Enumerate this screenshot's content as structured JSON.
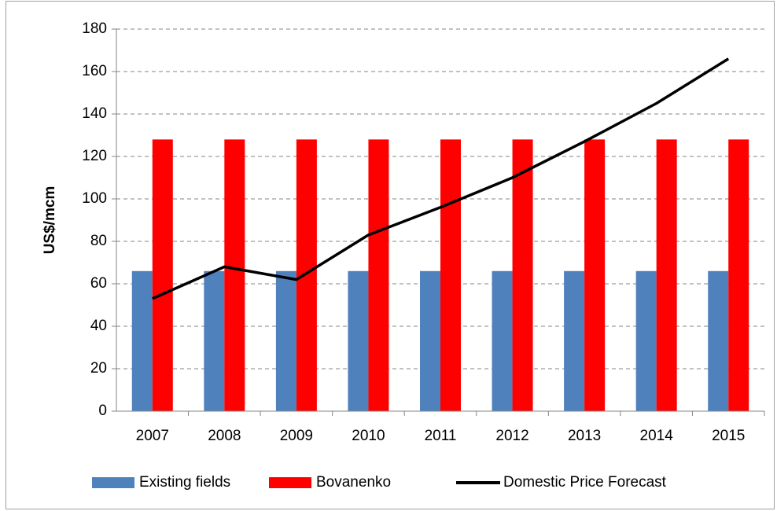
{
  "chart_data": {
    "type": "bar",
    "ylabel": "US$/mcm",
    "categories": [
      "2007",
      "2008",
      "2009",
      "2010",
      "2011",
      "2012",
      "2013",
      "2014",
      "2015"
    ],
    "series": [
      {
        "name": "Existing fields",
        "color": "#4f81bd",
        "values": [
          66,
          66,
          66,
          66,
          66,
          66,
          66,
          66,
          66
        ]
      },
      {
        "name": "Bovanenko",
        "color": "#ff0000",
        "values": [
          128,
          128,
          128,
          128,
          128,
          128,
          128,
          128,
          128
        ]
      },
      {
        "name": "Domestic Price Forecast",
        "color": "#000000",
        "type": "line",
        "values": [
          53,
          68,
          62,
          83,
          96,
          110,
          127,
          145,
          166
        ]
      }
    ],
    "ylim": [
      0,
      180
    ],
    "yticks": [
      0,
      20,
      40,
      60,
      80,
      100,
      120,
      140,
      160,
      180
    ],
    "grid": true,
    "legend": "bottom"
  }
}
